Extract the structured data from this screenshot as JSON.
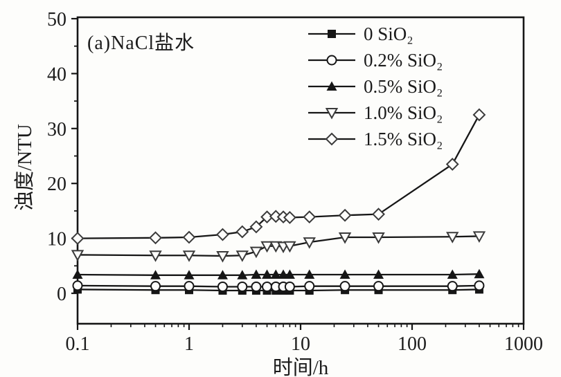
{
  "chart_data": {
    "type": "line",
    "title": "",
    "annotation": "(a)NaCl盐水",
    "xlabel": "时间/h",
    "ylabel": "浊度/NTU",
    "x_scale": "log",
    "xlim": [
      0.1,
      1000
    ],
    "ylim": [
      0,
      50
    ],
    "grid": false,
    "legend_position": "inside-top-center",
    "x_tick_labels": [
      "0.1",
      "1",
      "10",
      "100",
      "1000"
    ],
    "x_tick_values": [
      0.1,
      1,
      10,
      100,
      1000
    ],
    "y_tick_labels": [
      "0",
      "10",
      "20",
      "30",
      "40",
      "50"
    ],
    "y_tick_values": [
      0,
      10,
      20,
      30,
      40,
      50
    ],
    "y_minor_tick_values": [
      5,
      15,
      25,
      35,
      45
    ],
    "x": [
      0.1,
      0.5,
      1,
      2,
      3,
      4,
      5,
      6,
      7,
      8,
      12,
      25,
      50,
      230,
      400
    ],
    "series": [
      {
        "name": "0 SiO₂",
        "marker": "square-filled",
        "values": [
          0.7,
          0.6,
          0.6,
          0.5,
          0.5,
          0.5,
          0.5,
          0.5,
          0.5,
          0.5,
          0.5,
          0.6,
          0.6,
          0.6,
          0.7
        ]
      },
      {
        "name": "0.2% SiO₂",
        "marker": "circle-open",
        "values": [
          1.4,
          1.3,
          1.3,
          1.2,
          1.2,
          1.2,
          1.2,
          1.2,
          1.2,
          1.2,
          1.3,
          1.3,
          1.3,
          1.3,
          1.4
        ]
      },
      {
        "name": "0.5% SiO₂",
        "marker": "triangle-filled",
        "values": [
          3.4,
          3.3,
          3.3,
          3.3,
          3.3,
          3.4,
          3.4,
          3.4,
          3.4,
          3.4,
          3.4,
          3.4,
          3.4,
          3.4,
          3.5
        ]
      },
      {
        "name": "1.0% SiO₂",
        "marker": "triangle-down-open",
        "values": [
          7.0,
          6.9,
          6.9,
          6.8,
          6.9,
          7.6,
          8.6,
          8.6,
          8.5,
          8.6,
          9.3,
          10.2,
          10.2,
          10.3,
          10.4
        ]
      },
      {
        "name": "1.5% SiO₂",
        "marker": "diamond-open",
        "values": [
          10.0,
          10.1,
          10.2,
          10.7,
          11.2,
          12.1,
          13.9,
          14.0,
          13.9,
          13.8,
          13.9,
          14.2,
          14.4,
          23.5,
          32.5
        ]
      }
    ],
    "line_color": "#161616",
    "marker_open_fill": "#fdfdfb",
    "background": "#fdfdfb"
  }
}
